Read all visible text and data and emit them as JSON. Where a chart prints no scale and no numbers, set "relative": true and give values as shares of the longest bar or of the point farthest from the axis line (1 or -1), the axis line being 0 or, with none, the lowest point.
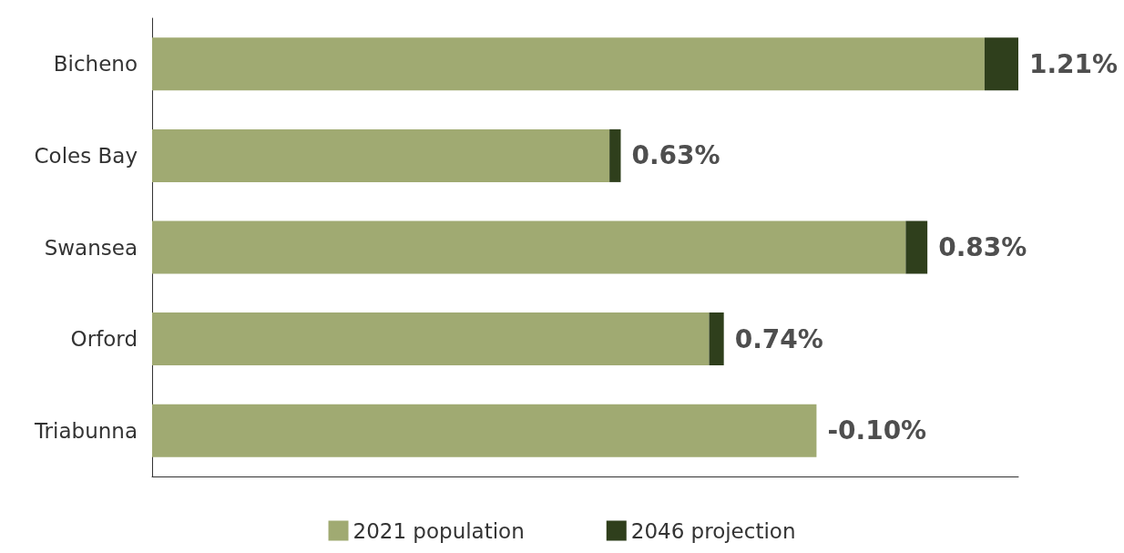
{
  "chart_data": {
    "type": "bar",
    "orientation": "horizontal",
    "stacked": true,
    "relative": true,
    "categories": [
      "Bicheno",
      "Coles Bay",
      "Swansea",
      "Orford",
      "Triabunna"
    ],
    "series": [
      {
        "name": "2021 population",
        "color": "#a0aa72",
        "values": [
          0.961,
          0.528,
          0.87,
          0.643,
          0.767
        ]
      },
      {
        "name": "2046 projection",
        "color": "#2f3f1c",
        "values": [
          0.039,
          0.013,
          0.025,
          0.017,
          null
        ]
      }
    ],
    "annotations": [
      {
        "text": "1.21%",
        "x": 1.0,
        "y": "Bicheno"
      },
      {
        "text": "0.63%",
        "x": 0.541,
        "y": "Coles Bay"
      },
      {
        "text": "0.83%",
        "x": 0.895,
        "y": "Swansea"
      },
      {
        "text": "0.74%",
        "x": 0.66,
        "y": "Orford"
      },
      {
        "text": "-0.10%",
        "x": 0.767,
        "y": "Triabunna"
      }
    ],
    "legend": "bottom",
    "grid": false
  }
}
